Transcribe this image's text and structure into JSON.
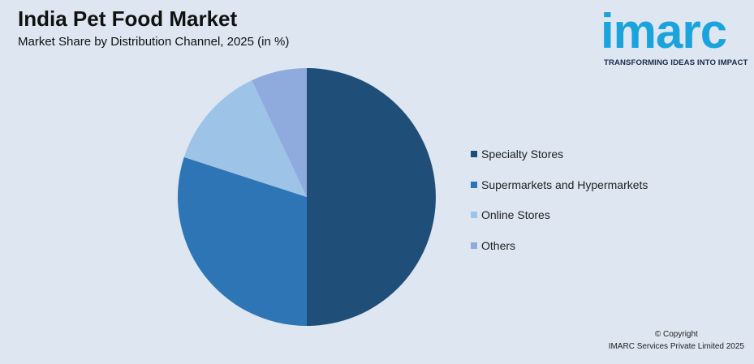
{
  "header": {
    "title": "India Pet Food Market",
    "subtitle": "Market Share by Distribution Channel, 2025 (in %)"
  },
  "logo": {
    "word": "imarc",
    "tagline": "TRANSFORMING IDEAS INTO IMPACT"
  },
  "chart_data": {
    "type": "pie",
    "categories": [
      "Specialty Stores",
      "Supermarkets and Hypermarkets",
      "Online Stores",
      "Others"
    ],
    "values": [
      50,
      30,
      13,
      7
    ],
    "colors": [
      "#1f4e79",
      "#2e75b6",
      "#9dc3e6",
      "#8faadc"
    ],
    "legend_position": "right"
  },
  "footer": {
    "copyright_line1": "© Copyright",
    "copyright_line2": "IMARC Services Private Limited 2025"
  }
}
